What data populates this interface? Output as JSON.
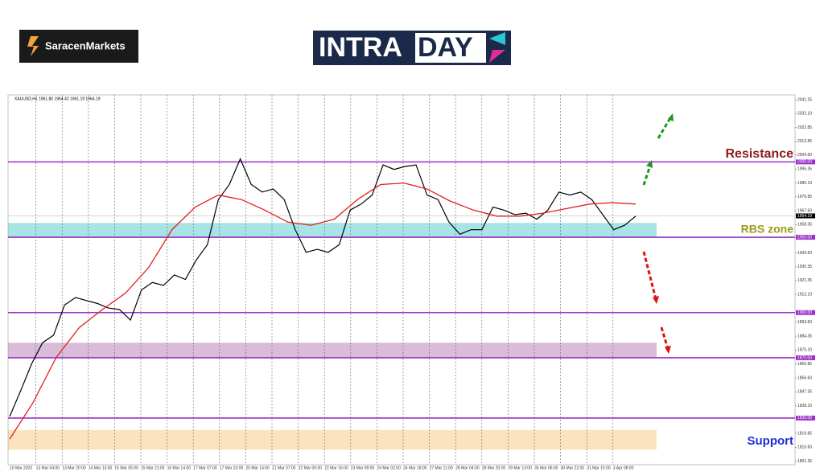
{
  "header": {
    "brand": "SaracenMarkets",
    "logo_left": "INTRA",
    "logo_right": "DAY"
  },
  "chart_data": {
    "type": "line",
    "symbol_info": "XAUUSD,H1  1961.80 1964.42 1961.19 1964.19",
    "series": [
      {
        "color": "#000000",
        "values": [
          1831,
          1848,
          1866,
          1880,
          1885,
          1905,
          1910,
          1908,
          1906,
          1903,
          1902,
          1895,
          1915,
          1920,
          1918,
          1925,
          1922,
          1935,
          1945,
          1975,
          1985,
          2002,
          1985,
          1980,
          1982,
          1975,
          1955,
          1940,
          1942,
          1940,
          1945,
          1968,
          1972,
          1978,
          1998,
          1995,
          1997,
          1998,
          1978,
          1975,
          1960,
          1952,
          1955,
          1955,
          1970,
          1968,
          1965,
          1966,
          1962,
          1968,
          1980,
          1978,
          1980,
          1975,
          1965,
          1955,
          1958,
          1964
        ]
      },
      {
        "color": "#e0201c",
        "values": [
          1816,
          1840,
          1870,
          1890,
          1902,
          1913,
          1930,
          1955,
          1970,
          1978,
          1975,
          1968,
          1960,
          1958,
          1962,
          1975,
          1985,
          1986,
          1982,
          1974,
          1968,
          1964,
          1964,
          1966,
          1969,
          1972,
          1973,
          1972
        ]
      }
    ],
    "ylim": [
      1799,
      2044.5
    ],
    "yticks": [
      2041.25,
      {
        "value": 2032.1,
        "label": "2032.10"
      },
      2022.85,
      2013.85,
      {
        "value": 2004.6,
        "label": "2004.60"
      },
      1995.35,
      {
        "value": 1986.1,
        "label": "1986.10"
      },
      1976.85,
      {
        "value": 1967.6,
        "label": "1967.60"
      },
      1958.35,
      {
        "value": 1939.6,
        "label": "1939.60"
      },
      1930.35,
      1921.35,
      {
        "value": 1912.1,
        "label": "1912.10"
      },
      {
        "value": 1893.6,
        "label": "1893.60"
      },
      1884.35,
      {
        "value": 1875.1,
        "label": "1875.10"
      },
      1865.85,
      {
        "value": 1856.6,
        "label": "1856.60"
      },
      1847.35,
      {
        "value": 1838.1,
        "label": "1838.10"
      },
      1819.85,
      {
        "value": 1810.6,
        "label": "1810.60"
      },
      1801.35
    ],
    "xlabels": [
      "10 Mar 2023",
      "13 Mar 04:00",
      "13 Mar 20:00",
      "14 Mar 13:00",
      "15 Mar 05:00",
      "15 Mar 21:00",
      "16 Mar 14:00",
      "17 Mar 07:00",
      "17 Mar 23:00",
      "20 Mar 14:00",
      "21 Mar 07:00",
      "22 Mar 00:00",
      "22 Mar 16:00",
      "23 Mar 09:00",
      "24 Mar 02:00",
      "24 Mar 18:00",
      "27 Mar 11:00",
      "28 Mar 04:00",
      "28 Mar 20:00",
      "29 Mar 13:00",
      "30 Mar 06:00",
      "30 Mar 22:00",
      "31 Mar 15:00",
      "3 Apr 08:00"
    ],
    "levels": [
      {
        "value": 2000,
        "label": "2000.00"
      },
      {
        "value": 1950,
        "label": "1950.00"
      },
      {
        "value": 1900,
        "label": "1900.00"
      },
      {
        "value": 1870,
        "label": "1870.00"
      },
      {
        "value": 1830,
        "label": "1830.00"
      }
    ],
    "level_color": "#9b30c8",
    "zones": [
      {
        "from": 1950,
        "to": 1959.5,
        "color": "#a6e4e6"
      },
      {
        "from": 1870,
        "to": 1880,
        "color": "#d9bcd9"
      },
      {
        "from": 1809,
        "to": 1822,
        "color": "#fbe3bd"
      }
    ],
    "current_price": {
      "value": 1964.19,
      "label": "1964.19"
    },
    "annotations": [
      {
        "text": "Resistance",
        "color": "#8b1a1a"
      },
      {
        "text": "RBS zone",
        "color": "#9a9a1c"
      },
      {
        "text": "Support",
        "color": "#1f2fd6"
      }
    ]
  }
}
